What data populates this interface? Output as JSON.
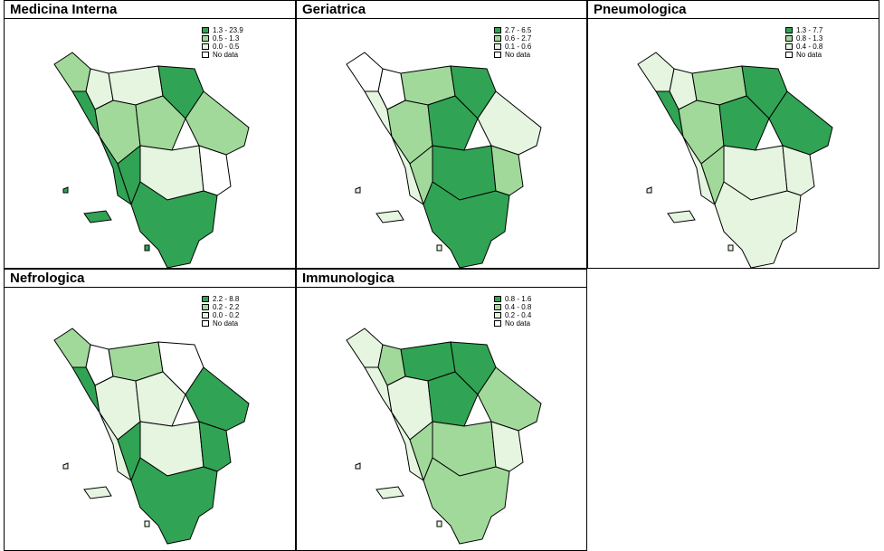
{
  "panels": [
    {
      "title": "Medicina Interna",
      "legend": [
        "1.3 - 23.9",
        "0.5 - 1.3",
        "0.0 - 0.5",
        "No data"
      ]
    },
    {
      "title": "Geriatrica",
      "legend": [
        "2.7 - 6.5",
        "0.6 - 2.7",
        "0.1 - 0.6",
        "No data"
      ]
    },
    {
      "title": "Pneumologica",
      "legend": [
        "1.3 - 7.7",
        "0.8 - 1.3",
        "0.4 - 0.8",
        "No data"
      ]
    },
    {
      "title": "Nefrologica",
      "legend": [
        "2.2 - 8.8",
        "0.2 - 2.2",
        "0.0 - 0.2",
        "No data"
      ]
    },
    {
      "title": "Immunologica",
      "legend": [
        "0.8 - 1.6",
        "0.4 - 0.8",
        "0.2 - 0.4",
        "No data"
      ]
    }
  ],
  "legend_colors": [
    "#31a354",
    "#a1d99b",
    "#e5f5e0",
    "#ffffff"
  ]
}
